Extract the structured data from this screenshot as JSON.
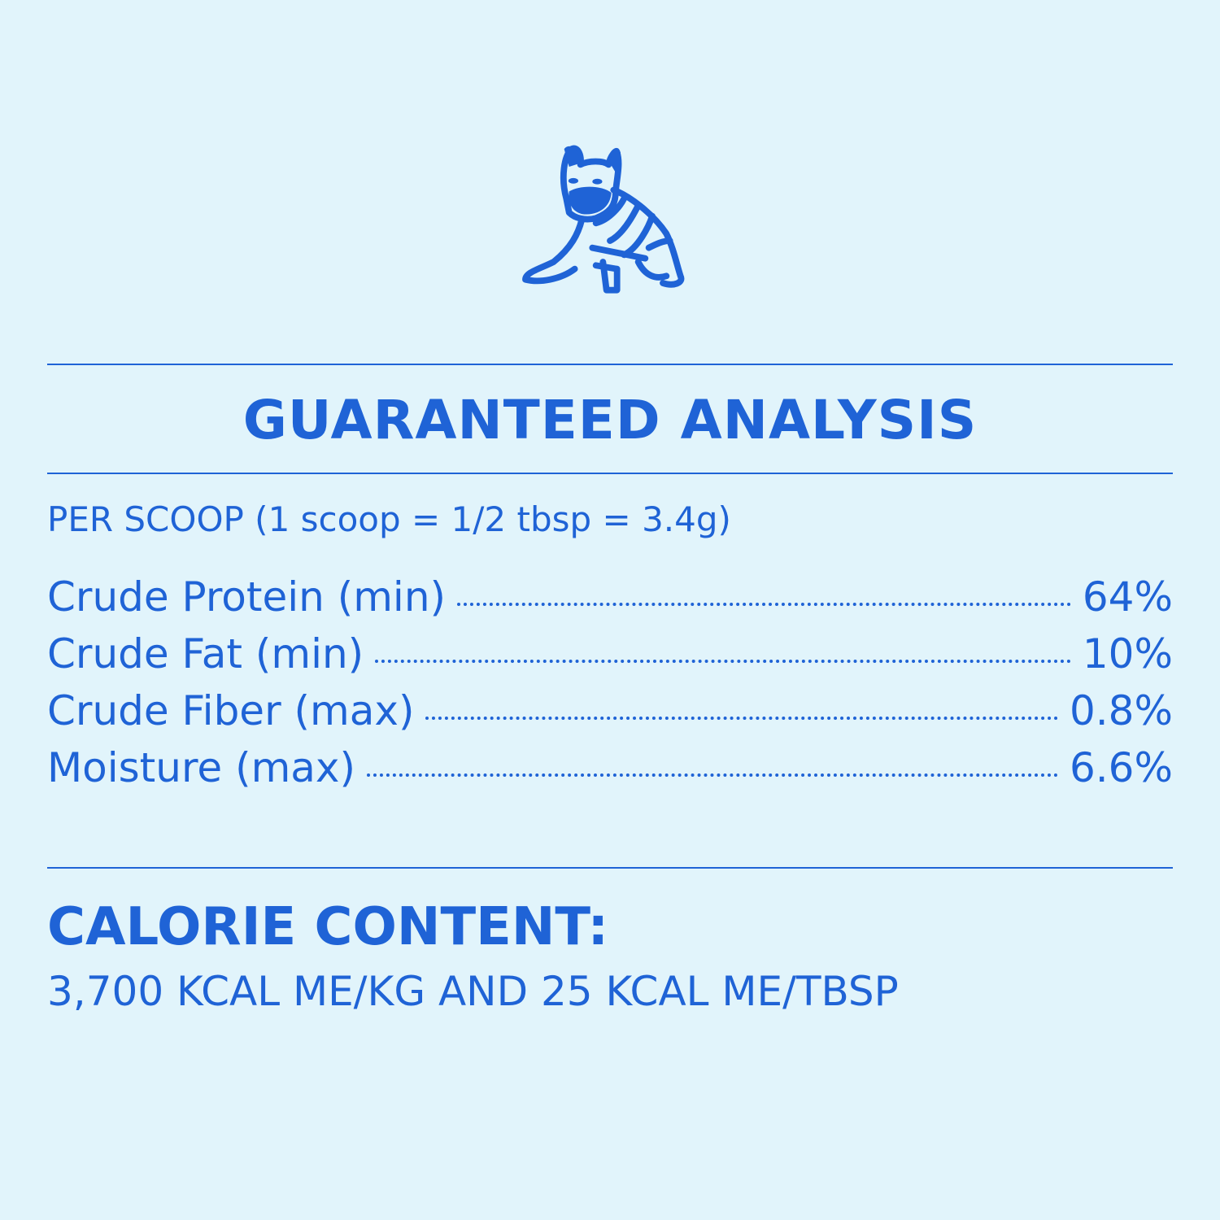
{
  "colors": {
    "background": "#e1f4fb",
    "accent": "#1f63d6"
  },
  "logo": {
    "icon": "french-bulldog-in-sweater-icon"
  },
  "analysis": {
    "title": "GUARANTEED ANALYSIS",
    "per_serving": "PER SCOOP (1 scoop = 1/2 tbsp = 3.4g)",
    "rows": [
      {
        "label": "Crude Protein (min)",
        "value": "64%"
      },
      {
        "label": "Crude Fat (min)",
        "value": "10%"
      },
      {
        "label": "Crude Fiber (max)",
        "value": "0.8%"
      },
      {
        "label": "Moisture (max)",
        "value": "6.6%"
      }
    ]
  },
  "calorie": {
    "title": "CALORIE CONTENT:",
    "text": "3,700 KCAL ME/KG AND 25 KCAL ME/TBSP"
  }
}
